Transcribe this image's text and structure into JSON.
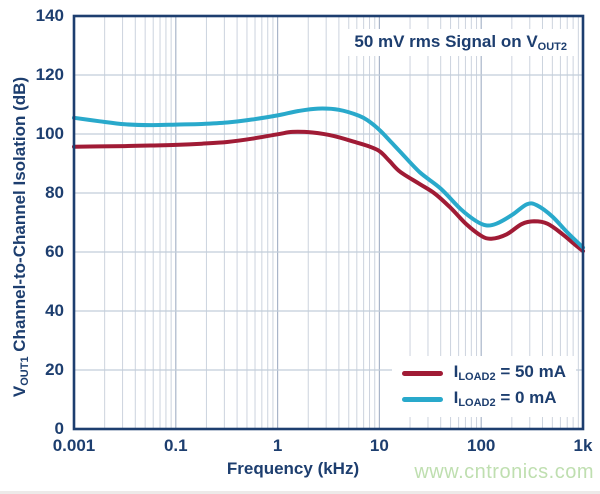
{
  "page": {
    "background": "#ffffff",
    "watermark_text": "www.cntronics.com",
    "watermark_color": "#bfdfb0",
    "bottom_strip_color": "#edeae9"
  },
  "colors": {
    "navy": "#1d3e6f",
    "frame": "#1d3e6f",
    "grid_minor": "#ccd3de",
    "grid_major": "#a9b5c9",
    "grid_horizontal": "#c2cdd9",
    "plot_background": "#ffffff"
  },
  "chart_data": {
    "type": "line",
    "annotation": {
      "text": "50 mV rms Signal on VOUT2",
      "parts": [
        {
          "t": "50 mV rms Signal on V"
        },
        {
          "t": "OUT2",
          "sub": true
        }
      ]
    },
    "xlabel": "Frequency (kHz)",
    "ylabel": "VOUT1 Channel-to-Channel Isolation (dB)",
    "ylabel_parts": [
      {
        "t": "V"
      },
      {
        "t": "OUT1",
        "sub": true
      },
      {
        "t": " Channel-to-Channel Isolation (dB)"
      }
    ],
    "x_axis": {
      "scale": "log",
      "unit": "kHz",
      "tick_labels": [
        "0.001",
        "0.1",
        "1",
        "10",
        "100",
        "1k"
      ],
      "min_kHz": 0.001,
      "max_kHz": 1000,
      "note": "first labeled interval spans 0.001 to 0.1 kHz in one visual decade"
    },
    "y_axis": {
      "min": 0,
      "max": 140,
      "step": 20,
      "tick_labels": [
        "0",
        "20",
        "40",
        "60",
        "80",
        "100",
        "120",
        "140"
      ],
      "unit": "dB"
    },
    "grid": true,
    "legend": {
      "position": "bottom-right-inside",
      "entries": [
        "ILOAD2 = 50 mA",
        "ILOAD2 = 0 mA"
      ]
    },
    "point_format": [
      "frequency_kHz",
      "isolation_dB"
    ],
    "series": [
      {
        "name": "ILOAD2 = 50 mA",
        "name_parts": [
          {
            "t": "I"
          },
          {
            "t": "LOAD2",
            "sub": true
          },
          {
            "t": " = 50 mA"
          }
        ],
        "color": "#a01b35",
        "points": [
          [
            0.001,
            95.7
          ],
          [
            0.0032,
            95.8
          ],
          [
            0.01,
            95.9
          ],
          [
            0.032,
            96.1
          ],
          [
            0.1,
            96.3
          ],
          [
            0.18,
            96.7
          ],
          [
            0.32,
            97.3
          ],
          [
            0.56,
            98.4
          ],
          [
            1,
            99.9
          ],
          [
            1.4,
            100.7
          ],
          [
            2.2,
            100.5
          ],
          [
            3.5,
            99.4
          ],
          [
            5.6,
            97.4
          ],
          [
            7.6,
            96.0
          ],
          [
            10,
            94.2
          ],
          [
            12.6,
            90.8
          ],
          [
            16,
            87.2
          ],
          [
            25,
            83.0
          ],
          [
            35,
            79.8
          ],
          [
            50,
            75.0
          ],
          [
            71,
            69.5
          ],
          [
            100,
            65.5
          ],
          [
            126,
            64.5
          ],
          [
            178,
            66.0
          ],
          [
            251,
            69.5
          ],
          [
            331,
            70.4
          ],
          [
            447,
            69.6
          ],
          [
            631,
            66.0
          ],
          [
            832,
            62.5
          ],
          [
            1000,
            60.3
          ]
        ]
      },
      {
        "name": "ILOAD2 = 0 mA",
        "name_parts": [
          {
            "t": "I"
          },
          {
            "t": "LOAD2",
            "sub": true
          },
          {
            "t": " = 0 mA"
          }
        ],
        "color": "#29a9cb",
        "points": [
          [
            0.001,
            105.5
          ],
          [
            0.0032,
            104.3
          ],
          [
            0.01,
            103.3
          ],
          [
            0.032,
            103.0
          ],
          [
            0.1,
            103.2
          ],
          [
            0.18,
            103.4
          ],
          [
            0.32,
            103.9
          ],
          [
            0.56,
            104.9
          ],
          [
            1,
            106.3
          ],
          [
            1.6,
            107.8
          ],
          [
            2.5,
            108.6
          ],
          [
            4,
            108.2
          ],
          [
            6.3,
            106.2
          ],
          [
            7.9,
            104.3
          ],
          [
            10,
            101.4
          ],
          [
            12.6,
            97.8
          ],
          [
            16,
            94.0
          ],
          [
            25,
            87.0
          ],
          [
            40,
            81.5
          ],
          [
            63,
            74.5
          ],
          [
            89,
            70.5
          ],
          [
            112,
            69.0
          ],
          [
            141,
            69.6
          ],
          [
            200,
            72.5
          ],
          [
            282,
            76.2
          ],
          [
            355,
            75.8
          ],
          [
            501,
            72.0
          ],
          [
            708,
            66.5
          ],
          [
            1000,
            61.5
          ]
        ]
      }
    ]
  }
}
